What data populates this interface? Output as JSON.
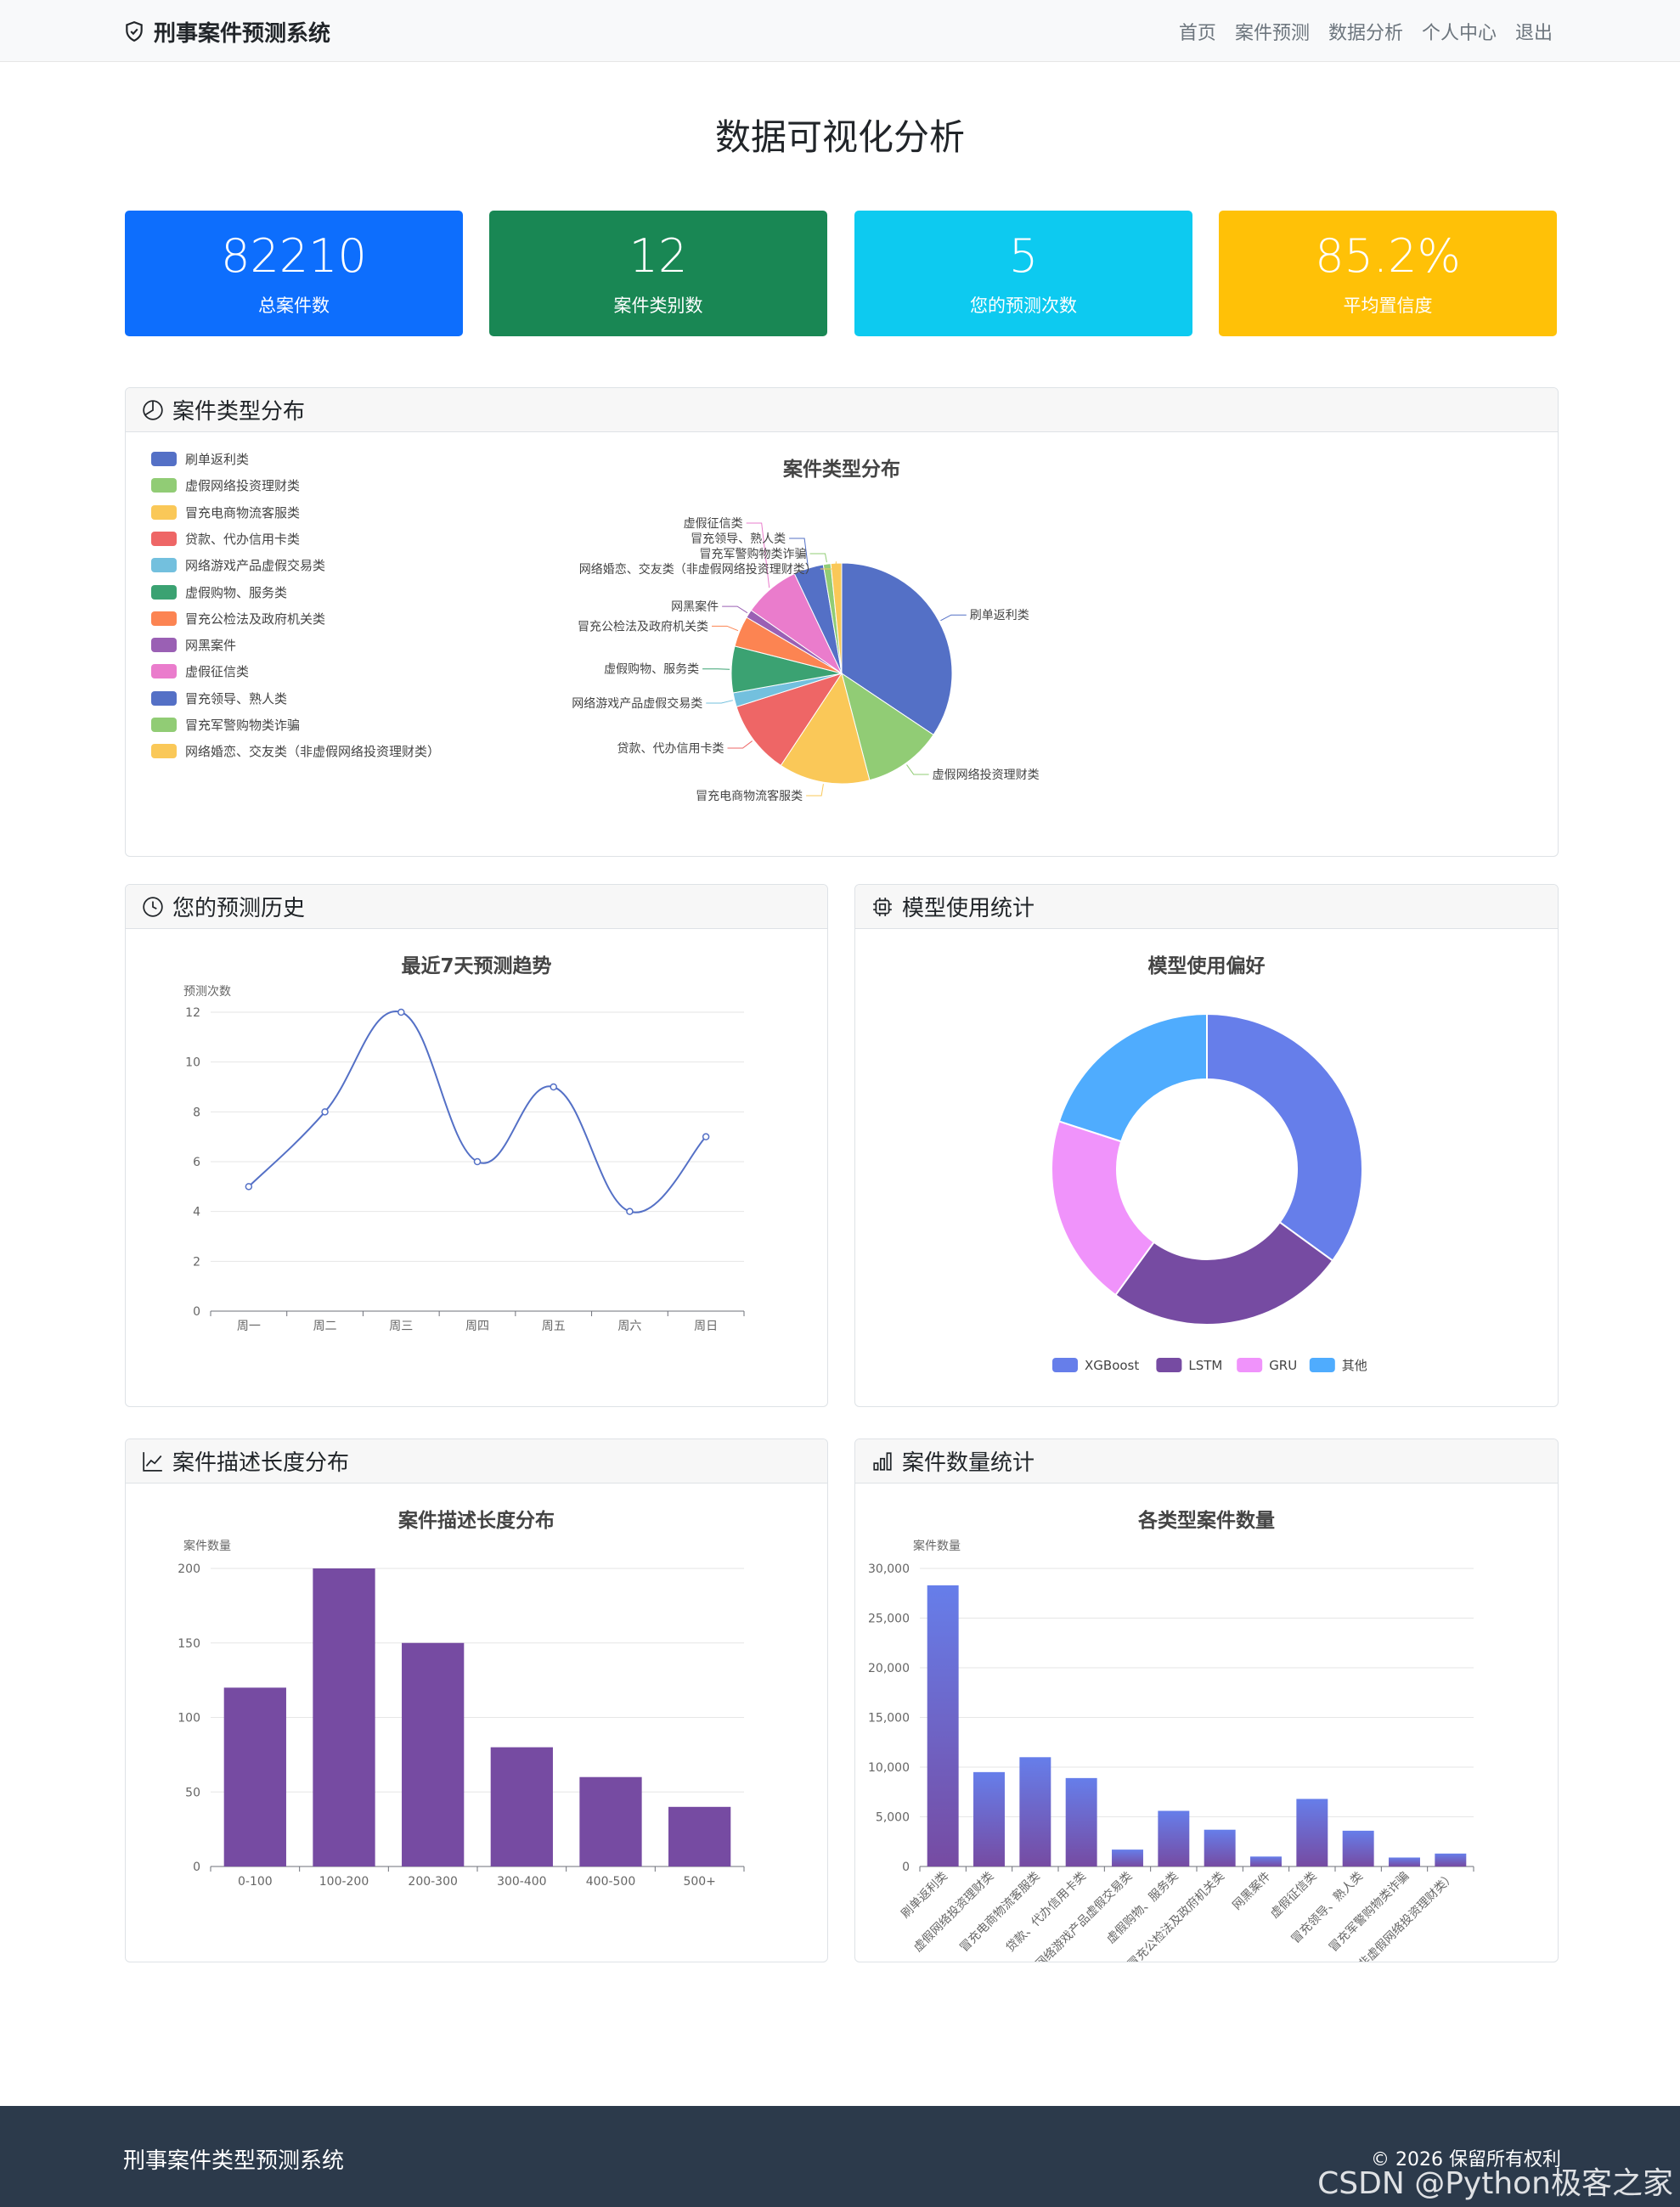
{
  "nav": {
    "brand": "刑事案件预测系统",
    "links": [
      "首页",
      "案件预测",
      "数据分析",
      "个人中心",
      "退出"
    ]
  },
  "page_title": "数据可视化分析",
  "stats": [
    {
      "value": "82210",
      "label": "总案件数",
      "color": "#0d6efd"
    },
    {
      "value": "12",
      "label": "案件类别数",
      "color": "#198754"
    },
    {
      "value": "5",
      "label": "您的预测次数",
      "color": "#0dcaf0"
    },
    {
      "value": "85.2%",
      "label": "平均置信度",
      "color": "#ffc107"
    }
  ],
  "cards": {
    "type_dist": {
      "header": "案件类型分布",
      "icon": "pie-chart-icon"
    },
    "history": {
      "header": "您的预测历史",
      "icon": "clock-icon"
    },
    "model": {
      "header": "模型使用统计",
      "icon": "cpu-icon"
    },
    "length": {
      "header": "案件描述长度分布",
      "icon": "line-graph-icon"
    },
    "count": {
      "header": "案件数量统计",
      "icon": "bar-chart-icon"
    }
  },
  "chart_data": [
    {
      "type": "pie",
      "title": "案件类型分布",
      "legend_position": "left",
      "categories": [
        "刷单返利类",
        "虚假网络投资理财类",
        "冒充电商物流客服类",
        "贷款、代办信用卡类",
        "网络游戏产品虚假交易类",
        "虚假购物、服务类",
        "冒充公检法及政府机关类",
        "网黑案件",
        "虚假征信类",
        "冒充领导、熟人类",
        "冒充军警购物类诈骗",
        "网络婚恋、交友类（非虚假网络投资理财类）"
      ],
      "values": [
        28300,
        9500,
        11000,
        8900,
        1700,
        5600,
        3700,
        1000,
        6800,
        3600,
        900,
        1300
      ],
      "colors": [
        "#5470c6",
        "#91cc75",
        "#fac858",
        "#ee6666",
        "#73c0de",
        "#3ba272",
        "#fc8452",
        "#9a60b4",
        "#ea7ccc",
        "#5470c6",
        "#91cc75",
        "#fac858"
      ]
    },
    {
      "type": "line",
      "title": "最近7天预测趋势",
      "ylabel": "预测次数",
      "categories": [
        "周一",
        "周二",
        "周三",
        "周四",
        "周五",
        "周六",
        "周日"
      ],
      "values": [
        5,
        8,
        12,
        6,
        9,
        4,
        7
      ],
      "yticks": [
        0,
        2,
        4,
        6,
        8,
        10,
        12
      ],
      "ylim": [
        0,
        12
      ],
      "color": "#5470c6"
    },
    {
      "type": "pie",
      "title": "模型使用偏好",
      "legend_position": "bottom",
      "categories": [
        "XGBoost",
        "LSTM",
        "GRU",
        "其他"
      ],
      "values": [
        35,
        25,
        20,
        20
      ],
      "colors": [
        "#667eea",
        "#764ba2",
        "#f093fb",
        "#4facfe"
      ]
    },
    {
      "type": "bar",
      "title": "案件描述长度分布",
      "ylabel": "案件数量",
      "categories": [
        "0-100",
        "100-200",
        "200-300",
        "300-400",
        "400-500",
        "500+"
      ],
      "values": [
        120,
        200,
        150,
        80,
        60,
        40
      ],
      "yticks": [
        0,
        50,
        100,
        150,
        200
      ],
      "ylim": [
        0,
        200
      ],
      "color": "#764ba2"
    },
    {
      "type": "bar",
      "title": "各类型案件数量",
      "ylabel": "案件数量",
      "categories": [
        "刷单返利类",
        "虚假网络投资理财类",
        "冒充电商物流客服类",
        "贷款、代办信用卡类",
        "网络游戏产品虚假交易类",
        "虚假购物、服务类",
        "冒充公检法及政府机关类",
        "网黑案件",
        "虚假征信类",
        "冒充领导、熟人类",
        "冒充军警购物类诈骗",
        "网络婚恋、交友类（非虚假网络投资理财类）"
      ],
      "values": [
        28300,
        9500,
        11000,
        8900,
        1700,
        5600,
        3700,
        1000,
        6800,
        3600,
        900,
        1300
      ],
      "yticks": [
        "0",
        "5,000",
        "10,000",
        "15,000",
        "20,000",
        "25,000",
        "30,000"
      ],
      "ylim": [
        0,
        30000
      ],
      "colors": [
        "#667eea",
        "#764ba2"
      ]
    }
  ],
  "footer": {
    "title": "刑事案件类型预测系统",
    "copyright": "© 2026 保留所有权利",
    "watermark": "CSDN @Python极客之家"
  }
}
